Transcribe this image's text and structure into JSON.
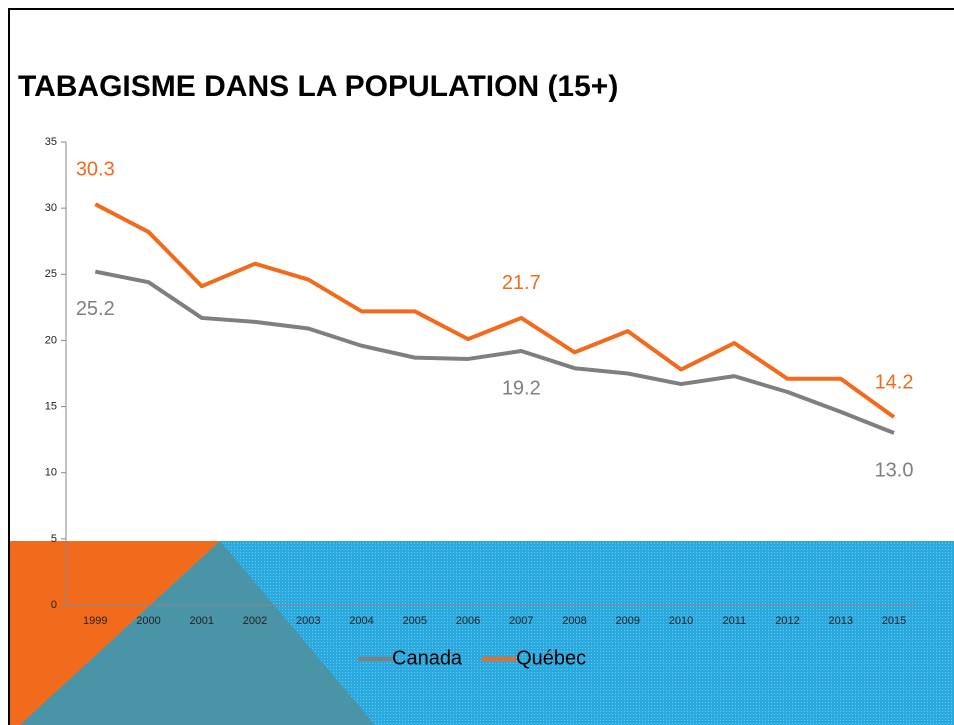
{
  "chart_data": {
    "type": "line",
    "title": "TABAGISME DANS LA POPULATION (15+)",
    "categories": [
      "1999",
      "2000",
      "2001",
      "2002",
      "2003",
      "2004",
      "2005",
      "2006",
      "2007",
      "2008",
      "2009",
      "2010",
      "2011",
      "2012",
      "2013",
      "2015"
    ],
    "series": [
      {
        "name": "Canada",
        "color": "#7f7f7f",
        "values": [
          25.2,
          24.4,
          21.7,
          21.4,
          20.9,
          19.6,
          18.7,
          18.6,
          19.2,
          17.9,
          17.5,
          16.7,
          17.3,
          16.1,
          14.6,
          13.0
        ],
        "value_labels": [
          "25.2",
          null,
          null,
          null,
          null,
          null,
          null,
          null,
          "19.2",
          null,
          null,
          null,
          null,
          null,
          null,
          "13.0"
        ]
      },
      {
        "name": "Québec",
        "color": "#f26b1d",
        "values": [
          30.3,
          28.2,
          24.1,
          25.8,
          24.6,
          22.2,
          22.2,
          20.1,
          21.7,
          19.1,
          20.7,
          17.8,
          19.8,
          17.1,
          17.1,
          14.2
        ],
        "value_labels": [
          "30.3",
          null,
          null,
          null,
          null,
          null,
          null,
          null,
          "21.7",
          null,
          null,
          null,
          null,
          null,
          null,
          "14.2"
        ]
      }
    ],
    "ylim": [
      0,
      35
    ],
    "yticks": [
      0,
      5,
      10,
      15,
      20,
      25,
      30,
      35
    ],
    "legend": "bottom"
  }
}
